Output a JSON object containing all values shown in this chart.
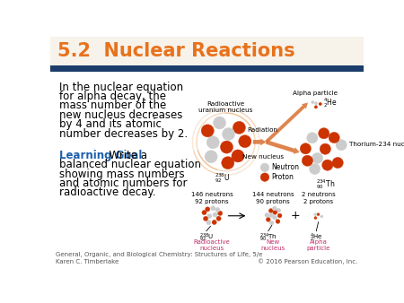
{
  "title": "5.2  Nuclear Reactions",
  "title_color": "#E8721C",
  "separator_color": "#1C3D6B",
  "bg_color": "#FFFFFF",
  "title_bg": "#F7F2EA",
  "footer_left": "General, Organic, and Biological Chemistry: Structures of Life, 5/e\nKaren C. Timberlake",
  "footer_right": "© 2016 Pearson Education, Inc.",
  "main_text_line1": "In the nuclear equation",
  "main_text_line2": "for alpha decay, the",
  "main_text_line3": "mass number of the",
  "main_text_line4": "new nucleus decreases",
  "main_text_line5": "by 4 and its atomic",
  "main_text_line6": "number decreases by 2.",
  "learning_goal_bold": "Learning Goal",
  "learning_goal_rest": "  Write a",
  "learning_goal_line2": "balanced nuclear equation",
  "learning_goal_line3": "showing mass numbers",
  "learning_goal_line4": "and atomic numbers for",
  "learning_goal_line5": "radioactive decay.",
  "title_fontsize": 15,
  "main_text_fontsize": 8.5,
  "footer_fontsize": 5.0,
  "learning_goal_fontsize": 8.5,
  "arrow_color": "#D97030",
  "proton_color": "#CC3300",
  "neutron_color": "#CCCCCC",
  "label_color": "#C0306A",
  "text_color": "#000000"
}
